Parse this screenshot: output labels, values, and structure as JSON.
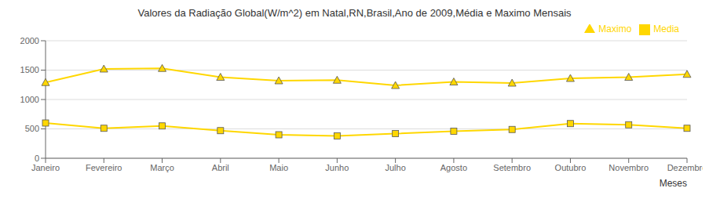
{
  "chart_data": {
    "type": "line",
    "title": "Valores da Radiação Global(W/m^2) em Natal,RN,Brasil,Ano de 2009,Média e Maximo Mensais",
    "xlabel": "Meses",
    "categories": [
      "Janeiro",
      "Fevereiro",
      "Março",
      "Abril",
      "Maio",
      "Junho",
      "Julho",
      "Agosto",
      "Setembro",
      "Outubro",
      "Novembro",
      "Dezembro"
    ],
    "series": [
      {
        "name": "Media",
        "color": "#FFD700",
        "marker": "square",
        "values": [
          600,
          510,
          550,
          470,
          400,
          380,
          420,
          460,
          490,
          590,
          570,
          510
        ]
      },
      {
        "name": "Maximo",
        "color": "#FFD700",
        "marker": "triangle",
        "values": [
          1290,
          1520,
          1530,
          1380,
          1320,
          1330,
          1240,
          1300,
          1280,
          1360,
          1380,
          1430
        ]
      }
    ],
    "ylim": [
      0,
      2000
    ],
    "yticks": [
      0,
      500,
      1000,
      1500,
      2000
    ],
    "grid": true,
    "legend": "upper right"
  }
}
